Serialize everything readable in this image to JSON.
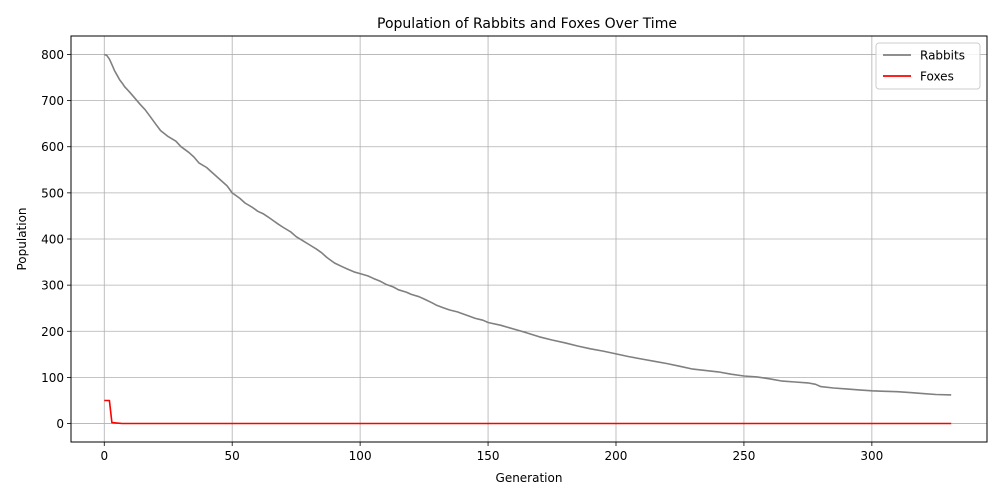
{
  "chart_data": {
    "type": "line",
    "title": "Population of Rabbits and Foxes Over Time",
    "xlabel": "Generation",
    "ylabel": "Population",
    "xlim": [
      -13,
      345
    ],
    "ylim": [
      -40,
      840
    ],
    "xticks": [
      0,
      50,
      100,
      150,
      200,
      250,
      300
    ],
    "yticks": [
      0,
      100,
      200,
      300,
      400,
      500,
      600,
      700,
      800
    ],
    "grid": true,
    "legend_position": "top-right",
    "series": [
      {
        "name": "Rabbits",
        "color": "#808080",
        "x": [
          0,
          1,
          2,
          3,
          4,
          5,
          6,
          7,
          8,
          10,
          12,
          14,
          16,
          18,
          20,
          22,
          25,
          28,
          30,
          33,
          35,
          37,
          40,
          42,
          45,
          48,
          50,
          53,
          55,
          58,
          60,
          62,
          64,
          66,
          68,
          70,
          73,
          75,
          78,
          80,
          83,
          85,
          87,
          90,
          93,
          95,
          98,
          100,
          103,
          105,
          108,
          110,
          113,
          115,
          118,
          120,
          123,
          125,
          128,
          130,
          133,
          135,
          138,
          140,
          143,
          145,
          148,
          150,
          155,
          160,
          165,
          170,
          175,
          180,
          185,
          190,
          195,
          200,
          205,
          210,
          215,
          220,
          225,
          230,
          240,
          245,
          250,
          255,
          260,
          265,
          270,
          275,
          278,
          280,
          285,
          290,
          295,
          300,
          305,
          310,
          315,
          320,
          325,
          331
        ],
        "y": [
          800,
          798,
          790,
          778,
          765,
          755,
          745,
          738,
          730,
          718,
          705,
          692,
          680,
          665,
          650,
          635,
          622,
          612,
          600,
          588,
          578,
          565,
          555,
          545,
          530,
          515,
          500,
          488,
          478,
          468,
          460,
          455,
          448,
          440,
          432,
          425,
          415,
          405,
          395,
          388,
          378,
          370,
          360,
          348,
          340,
          335,
          328,
          325,
          320,
          315,
          308,
          302,
          296,
          290,
          285,
          280,
          275,
          270,
          262,
          256,
          250,
          246,
          242,
          238,
          232,
          228,
          224,
          219,
          213,
          205,
          197,
          188,
          181,
          175,
          168,
          162,
          157,
          151,
          145,
          140,
          135,
          130,
          124,
          118,
          112,
          107,
          103,
          101,
          97,
          92,
          90,
          88,
          85,
          80,
          77,
          75,
          73,
          71,
          70,
          69,
          67,
          65,
          63,
          62
        ]
      },
      {
        "name": "Foxes",
        "color": "#ff0000",
        "x": [
          0,
          1,
          2,
          3,
          5,
          7,
          331
        ],
        "y": [
          50,
          50,
          50,
          2,
          1,
          0,
          0
        ]
      }
    ]
  }
}
